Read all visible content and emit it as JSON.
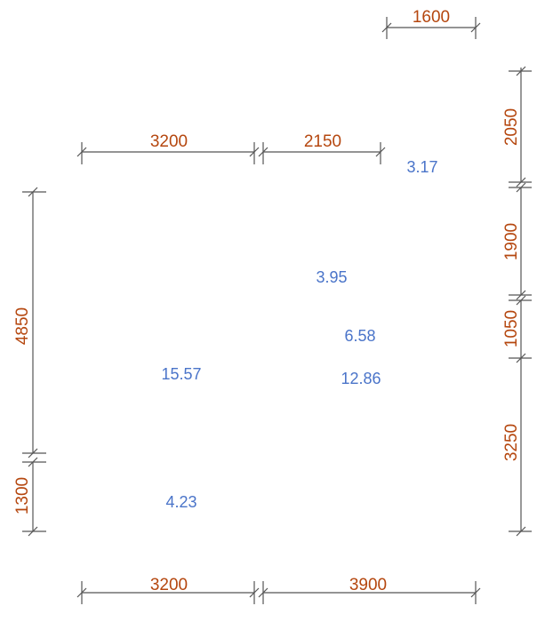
{
  "colors": {
    "dimension_text": "#b5470f",
    "area_text": "#4a74c9",
    "lines": "#555555",
    "background": "#ffffff"
  },
  "dimensions": {
    "top_right": "1600",
    "upper_left": "3200",
    "upper_middle": "2150",
    "bottom_left": "3200",
    "bottom_right": "3900",
    "left_upper": "4850",
    "left_lower": "1300",
    "right_1": "2050",
    "right_2": "1900",
    "right_3": "1050",
    "right_4": "3250"
  },
  "areas": {
    "a1": "3.17",
    "a2": "3.95",
    "a3": "6.58",
    "a4": "15.57",
    "a5": "12.86",
    "a6": "4.23"
  }
}
